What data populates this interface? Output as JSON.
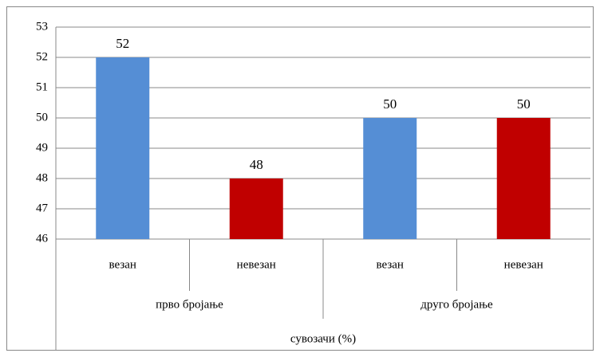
{
  "chart_data": {
    "type": "bar",
    "categories": [
      "везан",
      "невезан",
      "везан",
      "невезан"
    ],
    "groups": [
      "прво бројање",
      "друго бројање"
    ],
    "values": [
      52,
      48,
      50,
      50
    ],
    "colors": [
      "#558ed5",
      "#c00000",
      "#558ed5",
      "#c00000"
    ],
    "x_label": "сувозачи (%)",
    "ylim": [
      46,
      53
    ],
    "yticks": [
      46,
      47,
      48,
      49,
      50,
      51,
      52,
      53
    ],
    "grid": true
  }
}
